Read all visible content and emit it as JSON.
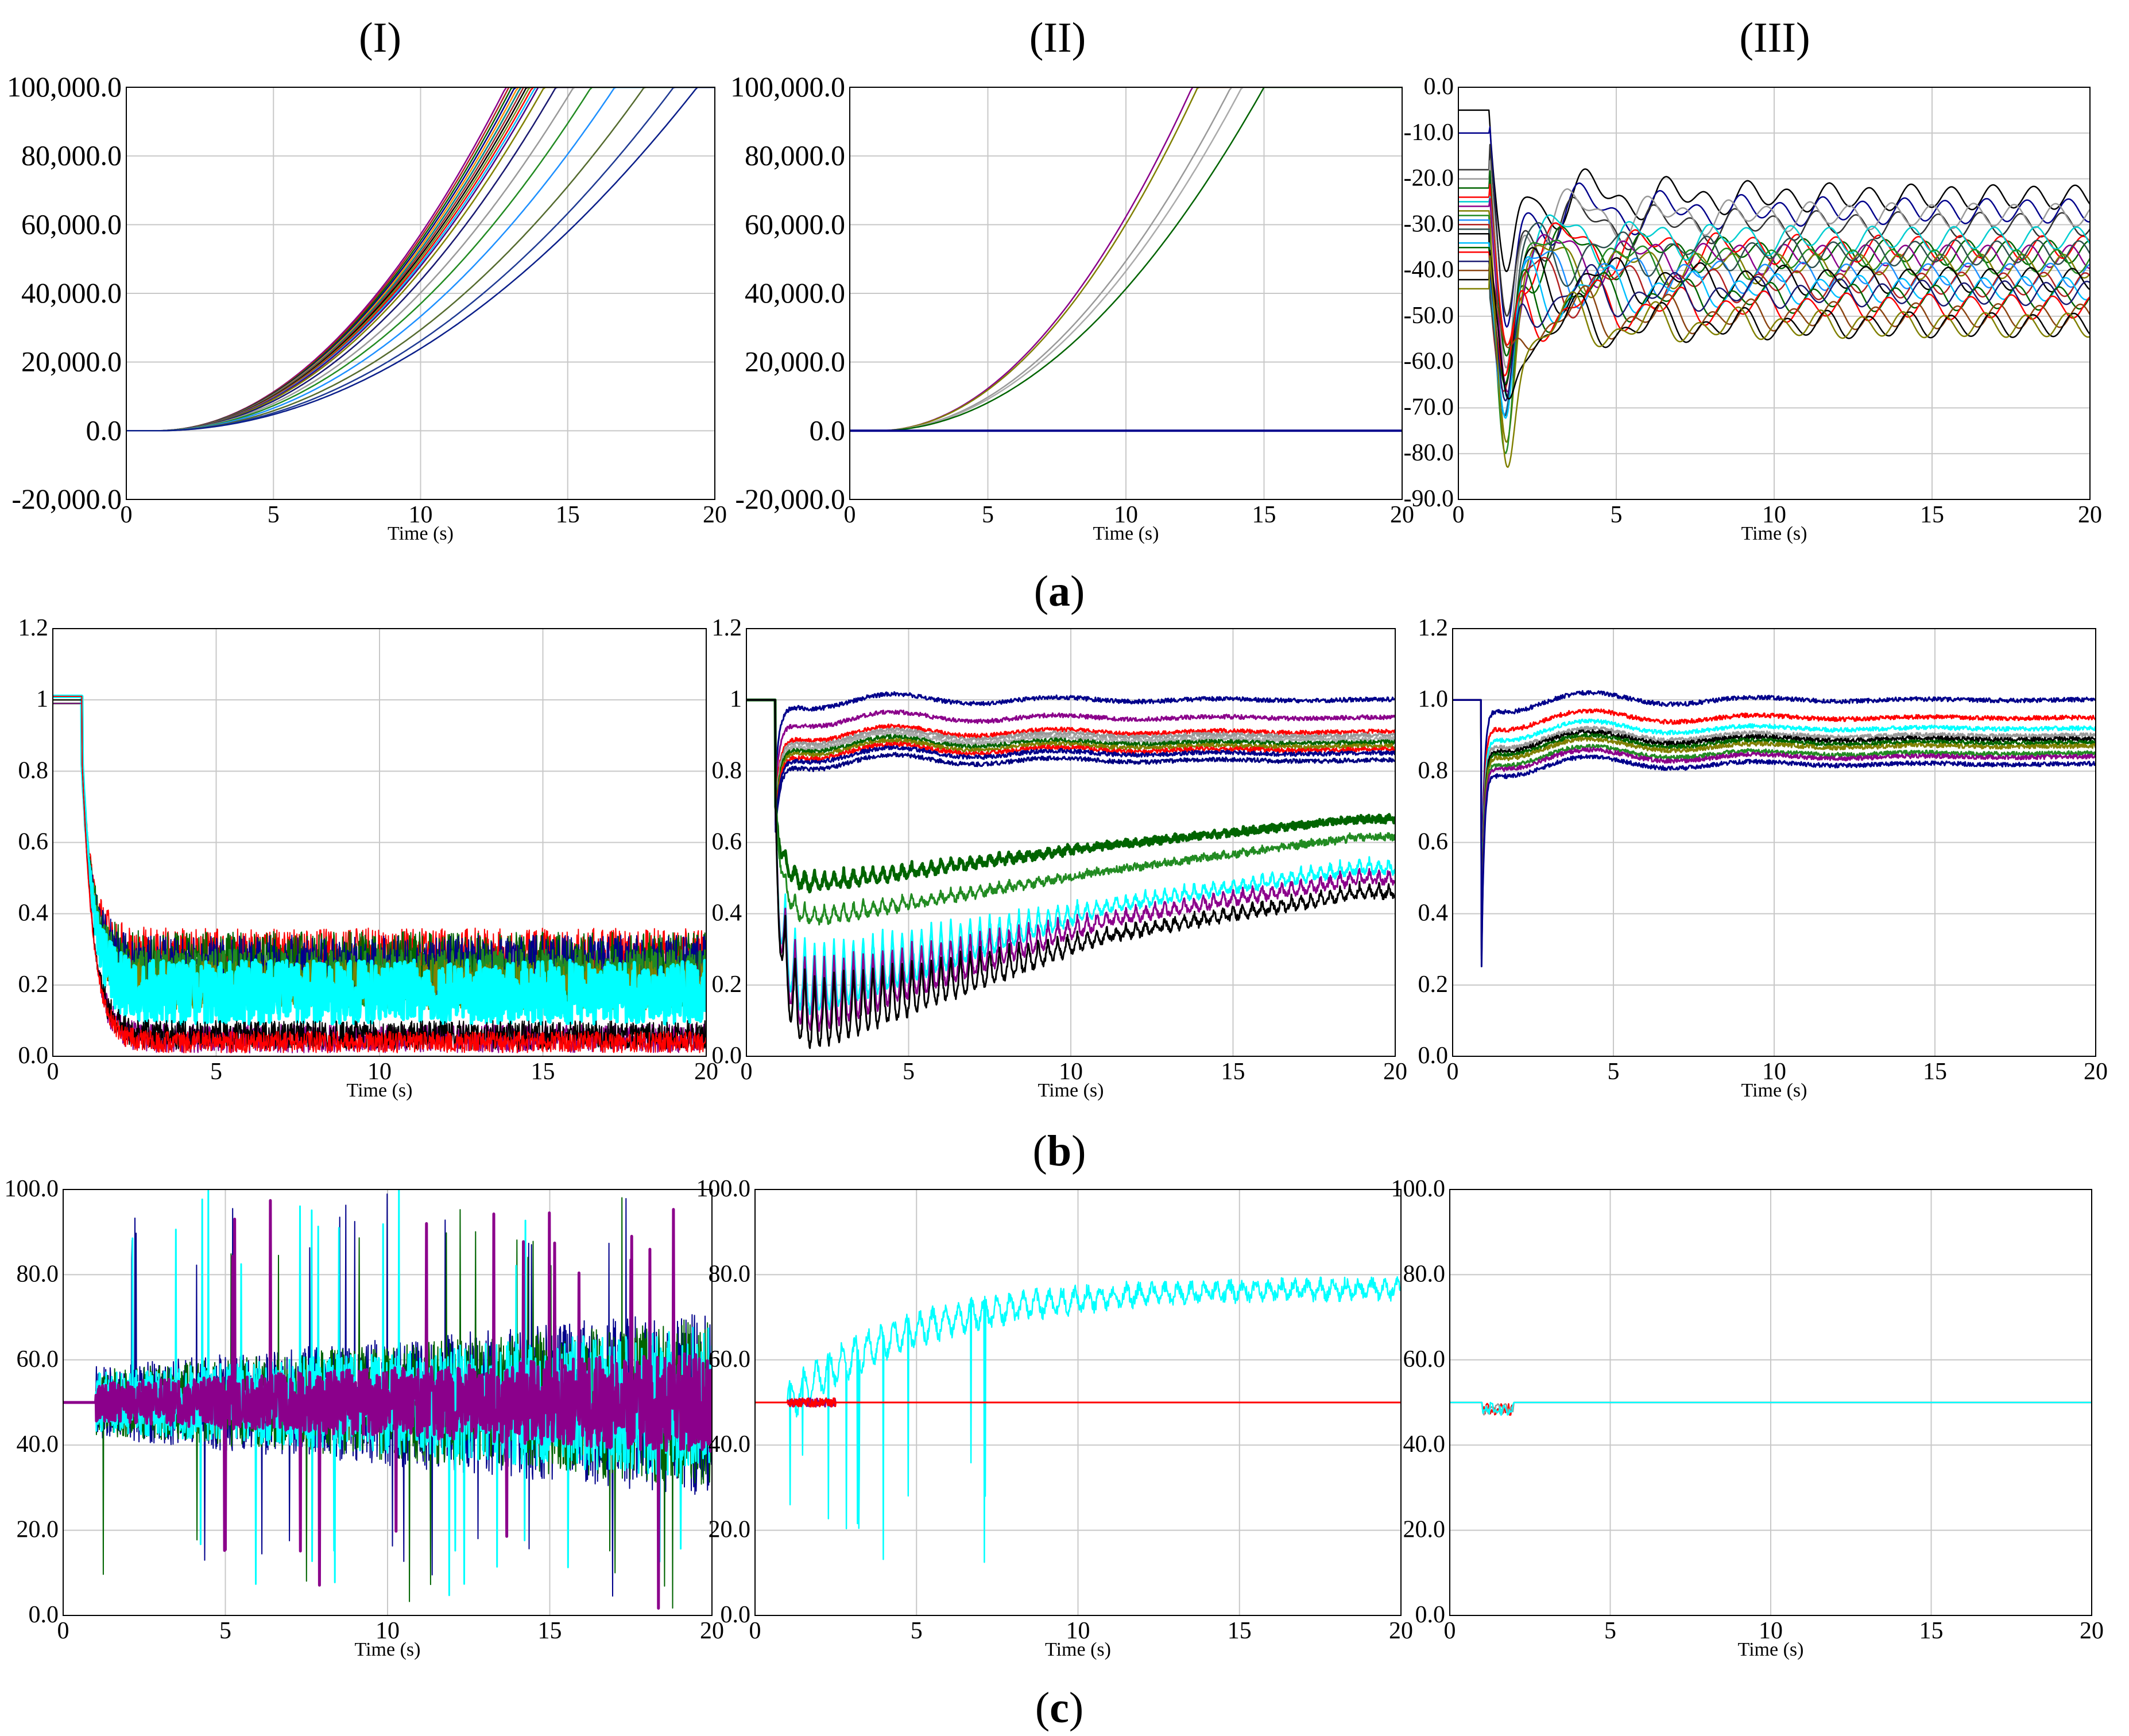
{
  "column_labels": [
    "(I)",
    "(II)",
    "(III)"
  ],
  "row_labels": [
    {
      "open": "(",
      "letter": "a",
      "close": ")"
    },
    {
      "open": "(",
      "letter": "b",
      "close": ")"
    },
    {
      "open": "(",
      "letter": "c",
      "close": ")"
    }
  ],
  "chart_data": [
    {
      "id": "a1",
      "row": 0,
      "col": 0,
      "type": "line",
      "xlabel": "Time (s)",
      "xlim": [
        0,
        20
      ],
      "ylim": [
        -20000,
        100000
      ],
      "xticks": [
        "0",
        "5",
        "10",
        "15",
        "20"
      ],
      "yticks": [
        "100,000.0",
        "80,000.0",
        "60,000.0",
        "40,000.0",
        "20,000.0",
        "0.0",
        "-20,000.0"
      ],
      "ytick_values": [
        100000,
        80000,
        60000,
        40000,
        20000,
        0,
        -20000
      ],
      "series_kind": "ramp",
      "onset": 1.0,
      "cap": 100000,
      "reach_times": [
        12.9,
        13.0,
        13.1,
        13.2,
        13.3,
        13.4,
        13.4,
        13.5,
        13.6,
        13.7,
        13.8,
        13.9,
        14.0,
        14.2,
        14.6,
        15.2,
        15.8,
        16.6,
        17.6,
        18.6,
        19.4
      ],
      "colors": [
        "#8b008b",
        "#b22222",
        "#006400",
        "#00008b",
        "#ff8c00",
        "#2f4f4f",
        "#008b8b",
        "#a52a2a",
        "#000000",
        "#6b8e23",
        "#ff0000",
        "#00bfff",
        "#4b0082",
        "#808000",
        "#191970",
        "#999999",
        "#228b22",
        "#1e90ff",
        "#556b2f",
        "#1f3a93",
        "#0b1f8a"
      ]
    },
    {
      "id": "a2",
      "row": 0,
      "col": 1,
      "type": "line",
      "xlabel": "Time (s)",
      "xlim": [
        0,
        20
      ],
      "ylim": [
        -20000,
        100000
      ],
      "xticks": [
        "0",
        "5",
        "10",
        "15",
        "20"
      ],
      "yticks": [
        "100,000.0",
        "80,000.0",
        "60,000.0",
        "40,000.0",
        "20,000.0",
        "0.0",
        "-20,000.0"
      ],
      "ytick_values": [
        100000,
        80000,
        60000,
        40000,
        20000,
        0,
        -20000
      ],
      "series_kind": "ramp",
      "onset": 1.0,
      "cap": 100000,
      "reach_times": [
        12.4,
        12.6,
        13.8,
        14.2,
        15.0
      ],
      "colors": [
        "#8b008b",
        "#808000",
        "#999999",
        "#aaaaaa",
        "#006400"
      ],
      "flat_series": [
        {
          "value": 0,
          "color": "#00008b"
        }
      ]
    },
    {
      "id": "a3",
      "row": 0,
      "col": 2,
      "type": "line",
      "xlabel": "Time (s)",
      "xlim": [
        0,
        20
      ],
      "ylim": [
        -90,
        0
      ],
      "xticks": [
        "0",
        "5",
        "10",
        "15",
        "20"
      ],
      "yticks": [
        "0.0",
        "-10.0",
        "-20.0",
        "-30.0",
        "-40.0",
        "-50.0",
        "-60.0",
        "-70.0",
        "-80.0",
        "-90.0"
      ],
      "ytick_values": [
        0,
        -10,
        -20,
        -30,
        -40,
        -50,
        -60,
        -70,
        -80,
        -90
      ],
      "series_kind": "swing",
      "onset": 1.0,
      "initial": [
        -5,
        -10,
        -18,
        -20,
        -22,
        -24,
        -25,
        -26,
        -27,
        -28,
        -29,
        -30,
        -31,
        -32,
        -34,
        -35,
        -36,
        -38,
        -40,
        -42,
        -44
      ],
      "final": [
        -24,
        -27,
        -30,
        -28,
        -36,
        -35,
        -33,
        -37,
        -39,
        -38,
        -41,
        -43,
        -36,
        -42,
        -44,
        -46,
        -48,
        -45,
        -50,
        -52,
        -52
      ],
      "dip": [
        -50,
        -60,
        -55,
        -65,
        -62,
        -58,
        -66,
        -60,
        -68,
        -70,
        -64,
        -63,
        -72,
        -67,
        -75,
        -69,
        -70,
        -78,
        -66,
        -73,
        -83
      ],
      "colors": [
        "#000000",
        "#00008b",
        "#333333",
        "#999999",
        "#006400",
        "#ff0000",
        "#00ced1",
        "#8b008b",
        "#808000",
        "#228b22",
        "#1e90ff",
        "#b22222",
        "#2f4f4f",
        "#000000",
        "#00bfff",
        "#006400",
        "#ff0000",
        "#191970",
        "#8b4513",
        "#000000",
        "#808000"
      ]
    },
    {
      "id": "b1",
      "row": 1,
      "col": 0,
      "type": "line",
      "xlabel": "Time (s)",
      "xlim": [
        0,
        20
      ],
      "ylim": [
        0,
        1.2
      ],
      "xticks": [
        "0",
        "5",
        "10",
        "15",
        "20"
      ],
      "yticks": [
        "1.2",
        "1",
        "0.8",
        "0.6",
        "0.4",
        "0.2",
        "0.0"
      ],
      "ytick_values": [
        1.2,
        1.0,
        0.8,
        0.6,
        0.4,
        0.2,
        0.0
      ],
      "series_kind": "collapse",
      "onset": 0.9,
      "pre": 1.0,
      "levels": [
        0.28,
        0.26,
        0.24,
        0.22,
        0.2,
        0.18,
        0.05,
        0.06,
        0.04
      ],
      "amplitudes": [
        0.08,
        0.09,
        0.1,
        0.08,
        0.07,
        0.09,
        0.04,
        0.04,
        0.03
      ],
      "colors": [
        "#ff0000",
        "#006400",
        "#00008b",
        "#228b22",
        "#808000",
        "#00ffff",
        "#8b008b",
        "#000000",
        "#ff0000"
      ],
      "widths": [
        2,
        2,
        2,
        3,
        2,
        6,
        2,
        2,
        2
      ]
    },
    {
      "id": "b2",
      "row": 1,
      "col": 1,
      "type": "line",
      "xlabel": "Time (s)",
      "xlim": [
        0,
        20
      ],
      "ylim": [
        0,
        1.2
      ],
      "xticks": [
        "0",
        "5",
        "10",
        "15",
        "20"
      ],
      "yticks": [
        "1.2",
        "1",
        "0.8",
        "0.6",
        "0.4",
        "0.2",
        "0.0"
      ],
      "ytick_values": [
        1.2,
        1.0,
        0.8,
        0.6,
        0.4,
        0.2,
        0.0
      ],
      "series_kind": "mixed",
      "onset": 0.9,
      "pre": 1.0,
      "settled": [
        1.0,
        0.95,
        0.91,
        0.9,
        0.89,
        0.88,
        0.87,
        0.86,
        0.85,
        0.83
      ],
      "settled_colors": [
        "#00008b",
        "#8b008b",
        "#ff0000",
        "#999999",
        "#aaaaaa",
        "#006400",
        "#808000",
        "#ff0000",
        "#00008b",
        "#000080"
      ],
      "recovering_start": [
        0.5,
        0.4,
        0.3,
        0.25,
        0.2
      ],
      "recovering_end": [
        0.67,
        0.62,
        0.55,
        0.52,
        0.48
      ],
      "recovering_colors": [
        "#006400",
        "#228b22",
        "#00ffff",
        "#8b008b",
        "#000000"
      ]
    },
    {
      "id": "b3",
      "row": 1,
      "col": 2,
      "type": "line",
      "xlabel": "Time (s)",
      "xlim": [
        0,
        20
      ],
      "ylim": [
        0,
        1.2
      ],
      "xticks": [
        "0",
        "5",
        "10",
        "15",
        "20"
      ],
      "yticks": [
        "1.2",
        "1.0",
        "0.8",
        "0.6",
        "0.4",
        "0.2",
        "0.0"
      ],
      "ytick_values": [
        1.2,
        1.0,
        0.8,
        0.6,
        0.4,
        0.2,
        0.0
      ],
      "series_kind": "recover",
      "onset": 0.9,
      "pre": 1.0,
      "settled": [
        1.0,
        0.95,
        0.92,
        0.9,
        0.89,
        0.88,
        0.87,
        0.85,
        0.84,
        0.82
      ],
      "colors": [
        "#00008b",
        "#ff0000",
        "#00ffff",
        "#999999",
        "#000000",
        "#006400",
        "#808000",
        "#228b22",
        "#8b008b",
        "#00008b"
      ]
    },
    {
      "id": "c1",
      "row": 2,
      "col": 0,
      "type": "line",
      "xlabel": "Time (s)",
      "xlim": [
        0,
        20
      ],
      "ylim": [
        0,
        100
      ],
      "xticks": [
        "0",
        "5",
        "10",
        "15",
        "20"
      ],
      "yticks": [
        "100.0",
        "80.0",
        "60.0",
        "40.0",
        "20.0",
        "0.0"
      ],
      "ytick_values": [
        100,
        80,
        60,
        40,
        20,
        0
      ],
      "series_kind": "noise",
      "onset": 1.0,
      "base": 50,
      "amplitudes": [
        22,
        20,
        18,
        12
      ],
      "colors": [
        "#00008b",
        "#006400",
        "#00ffff",
        "#8b008b"
      ],
      "widths": [
        2,
        2,
        3,
        5
      ]
    },
    {
      "id": "c2",
      "row": 2,
      "col": 1,
      "type": "line",
      "xlabel": "Time (s)",
      "xlim": [
        0,
        20
      ],
      "ylim": [
        0,
        100
      ],
      "xticks": [
        "0",
        "5",
        "10",
        "15",
        "20"
      ],
      "yticks": [
        "100.0",
        "80.0",
        "60.0",
        "40.0",
        "20.0",
        "0.0"
      ],
      "ytick_values": [
        100,
        80,
        60,
        40,
        20,
        0
      ],
      "series_kind": "rise",
      "onset": 1.0,
      "base": 50,
      "final": 77,
      "colors": [
        "#00ffff",
        "#8b008b",
        "#ff0000"
      ]
    },
    {
      "id": "c3",
      "row": 2,
      "col": 2,
      "type": "line",
      "xlabel": "Time (s)",
      "xlim": [
        0,
        20
      ],
      "ylim": [
        0,
        100
      ],
      "xticks": [
        "0",
        "5",
        "10",
        "15",
        "20"
      ],
      "yticks": [
        "100.0",
        "80.0",
        "60.0",
        "40.0",
        "20.0",
        "0.0"
      ],
      "ytick_values": [
        100,
        80,
        60,
        40,
        20,
        0
      ],
      "series_kind": "steady",
      "onset": 1.0,
      "base": 50,
      "colors": [
        "#ff0000",
        "#999999",
        "#00ffff"
      ]
    }
  ]
}
